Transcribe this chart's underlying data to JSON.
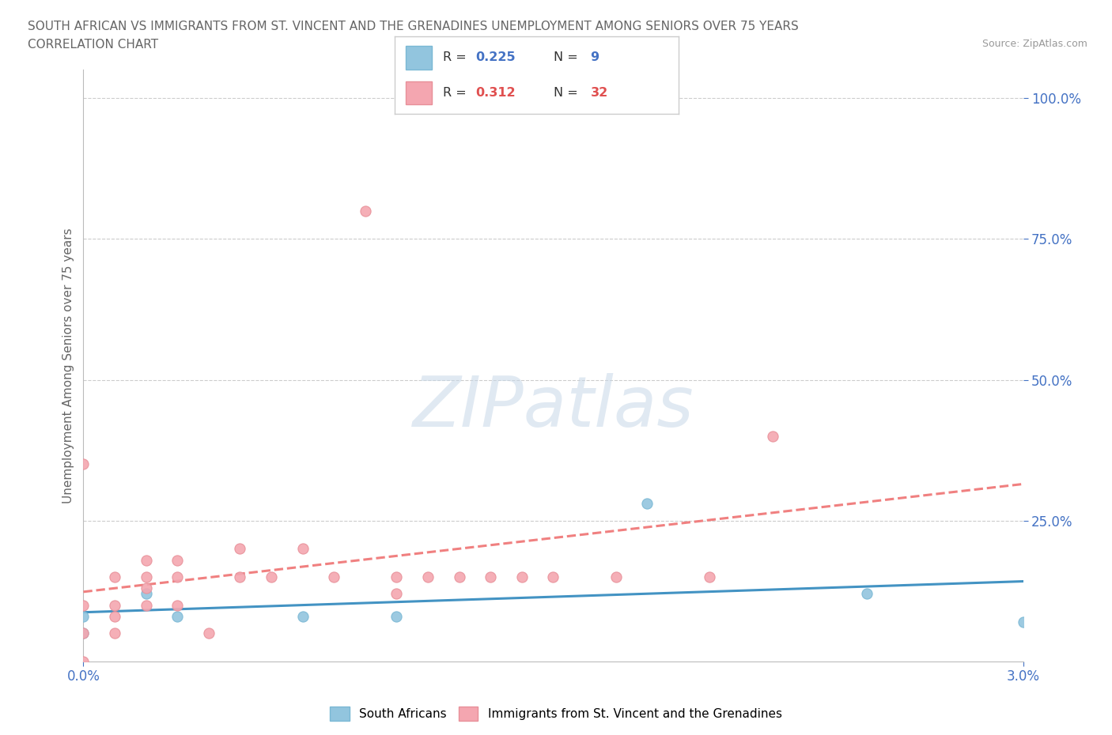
{
  "title_line1": "SOUTH AFRICAN VS IMMIGRANTS FROM ST. VINCENT AND THE GRENADINES UNEMPLOYMENT AMONG SENIORS OVER 75 YEARS",
  "title_line2": "CORRELATION CHART",
  "source_text": "Source: ZipAtlas.com",
  "ylabel": "Unemployment Among Seniors over 75 years",
  "xlim": [
    0.0,
    0.03
  ],
  "ylim": [
    0.0,
    1.05
  ],
  "xtick_vals": [
    0.0,
    0.03
  ],
  "xtick_labels": [
    "0.0%",
    "3.0%"
  ],
  "ytick_vals": [
    0.25,
    0.5,
    0.75,
    1.0
  ],
  "ytick_labels": [
    "25.0%",
    "50.0%",
    "75.0%",
    "100.0%"
  ],
  "color_blue_fill": "#92C5DE",
  "color_blue_edge": "#7AB8D4",
  "color_pink_fill": "#F4A6B0",
  "color_pink_edge": "#E89099",
  "color_line_blue": "#4393C3",
  "color_line_pink": "#F08080",
  "color_axis_label": "#4472C4",
  "color_title": "#666666",
  "color_source": "#999999",
  "color_grid": "#CCCCCC",
  "color_watermark": "#C8D8E8",
  "legend_r1": "0.225",
  "legend_n1": "9",
  "legend_r2": "0.312",
  "legend_n2": "32",
  "sa_x": [
    0.0,
    0.0,
    0.002,
    0.003,
    0.007,
    0.01,
    0.018,
    0.025,
    0.03
  ],
  "sa_y": [
    0.05,
    0.08,
    0.12,
    0.08,
    0.08,
    0.08,
    0.28,
    0.12,
    0.07
  ],
  "svg_x": [
    0.0,
    0.0,
    0.0,
    0.0,
    0.001,
    0.001,
    0.001,
    0.001,
    0.002,
    0.002,
    0.002,
    0.002,
    0.003,
    0.003,
    0.003,
    0.004,
    0.005,
    0.005,
    0.006,
    0.007,
    0.008,
    0.009,
    0.01,
    0.01,
    0.011,
    0.012,
    0.013,
    0.014,
    0.015,
    0.017,
    0.02,
    0.022
  ],
  "svg_y": [
    0.0,
    0.05,
    0.1,
    0.35,
    0.05,
    0.08,
    0.1,
    0.15,
    0.1,
    0.13,
    0.15,
    0.18,
    0.1,
    0.15,
    0.18,
    0.05,
    0.15,
    0.2,
    0.15,
    0.2,
    0.15,
    0.8,
    0.12,
    0.15,
    0.15,
    0.15,
    0.15,
    0.15,
    0.15,
    0.15,
    0.15,
    0.4
  ]
}
